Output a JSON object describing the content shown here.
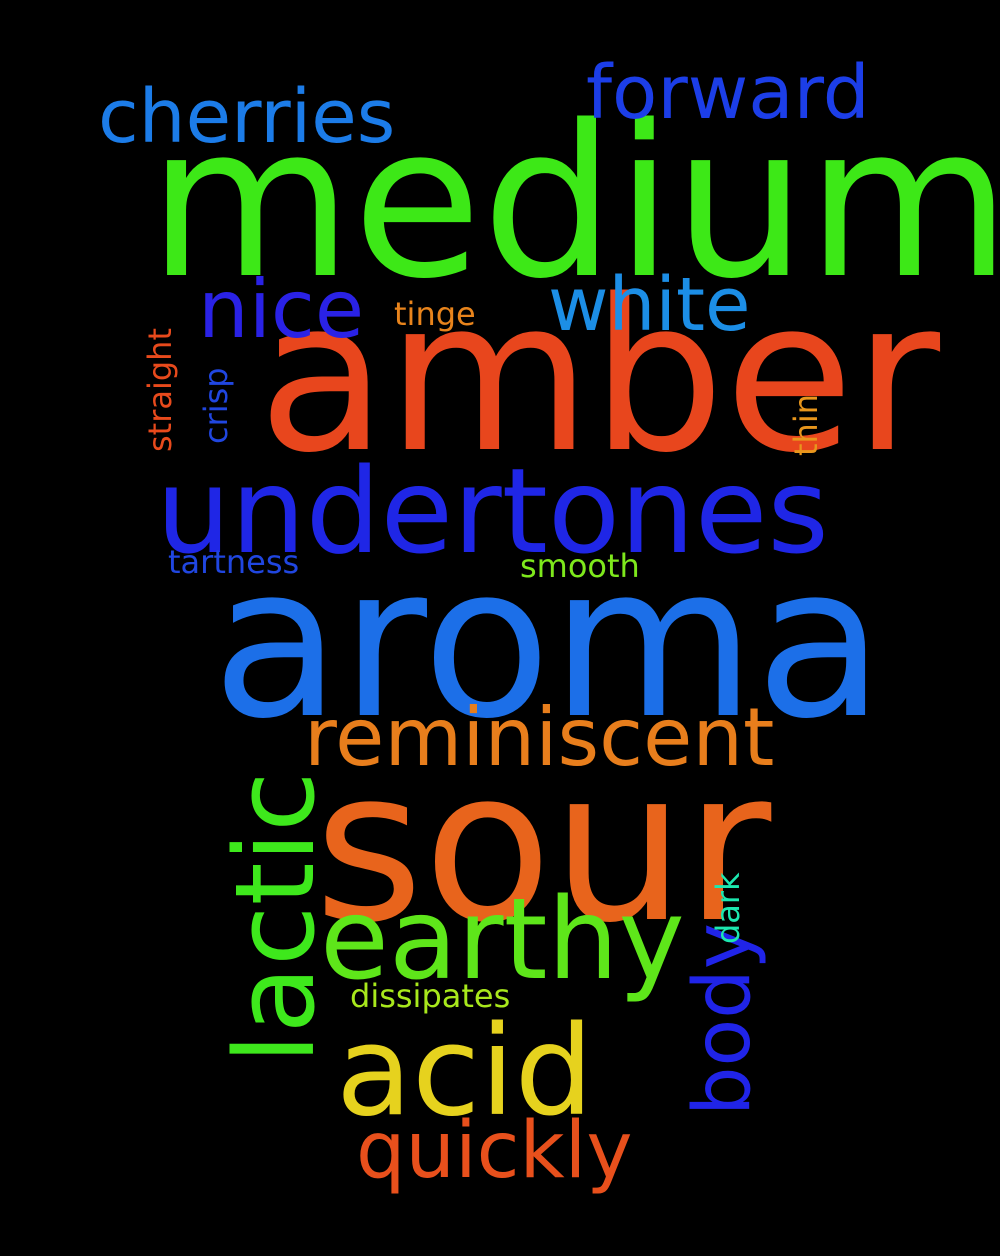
{
  "background": "#000000",
  "words": [
    {
      "text": "medium",
      "color": "#3de817"
    },
    {
      "text": "amber",
      "color": "#e8461d"
    },
    {
      "text": "aroma",
      "color": "#1c6fe8"
    },
    {
      "text": "sour",
      "color": "#e8641c"
    },
    {
      "text": "undertones",
      "color": "#1f26e6"
    },
    {
      "text": "earthy",
      "color": "#5ee61a"
    },
    {
      "text": "acid",
      "color": "#e6d21e"
    },
    {
      "text": "lactic",
      "color": "#3ee81c"
    },
    {
      "text": "reminiscent",
      "color": "#e87e1c"
    },
    {
      "text": "cherries",
      "color": "#1c7ce8"
    },
    {
      "text": "forward",
      "color": "#1c3ee8"
    },
    {
      "text": "nice",
      "color": "#2a22e6"
    },
    {
      "text": "white",
      "color": "#1c8ee6"
    },
    {
      "text": "quickly",
      "color": "#e8501c"
    },
    {
      "text": "body",
      "color": "#2024e8"
    },
    {
      "text": "tinge",
      "color": "#e8841c"
    },
    {
      "text": "straight",
      "color": "#e84a1c"
    },
    {
      "text": "crisp",
      "color": "#2046e0"
    },
    {
      "text": "thin",
      "color": "#e8961c"
    },
    {
      "text": "tartness",
      "color": "#2046e0"
    },
    {
      "text": "smooth",
      "color": "#7ee81c"
    },
    {
      "text": "dark",
      "color": "#1ce8b0"
    },
    {
      "text": "dissipates",
      "color": "#a8e81c"
    }
  ]
}
